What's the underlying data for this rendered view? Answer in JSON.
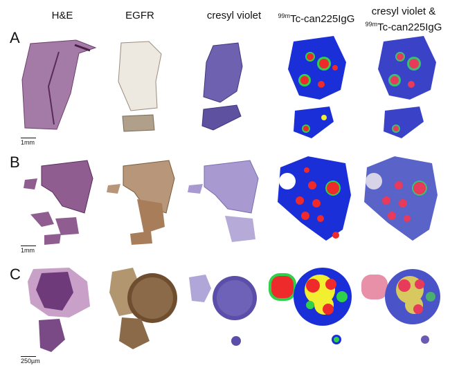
{
  "figure": {
    "columns": [
      {
        "label": "H&E"
      },
      {
        "label": "EGFR"
      },
      {
        "label": "cresyl violet"
      },
      {
        "sup": "99m",
        "label": "Tc-can225IgG"
      },
      {
        "label_line1": "cresyl violet &",
        "sup": "99m",
        "label_line2": "Tc-can225IgG"
      }
    ],
    "rows": [
      {
        "label": "A",
        "scale": "1mm"
      },
      {
        "label": "B",
        "scale": "1mm"
      },
      {
        "label": "C",
        "scale": "250µm"
      }
    ]
  },
  "colors": {
    "he": "#9a6f9a",
    "egfr": "#b99a78",
    "cresyl": "#8a7fc0",
    "blue": "#1a2fd8",
    "green": "#2fd04a",
    "yellow": "#f2ef30",
    "red": "#ee2a2a"
  }
}
